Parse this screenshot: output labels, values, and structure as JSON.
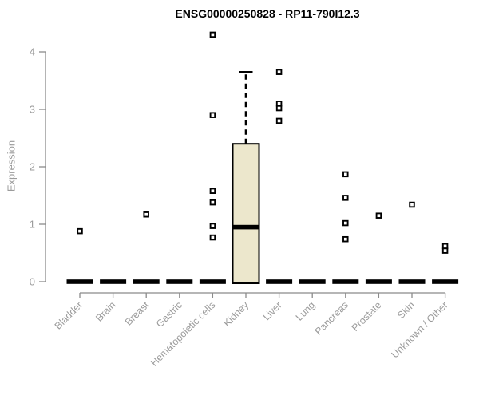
{
  "chart_data": {
    "type": "boxplot",
    "title": "ENSG00000250828 - RP11-790I12.3",
    "ylabel": "Expression",
    "xlabel": "",
    "ylim": [
      0,
      4.35
    ],
    "yticks": [
      0,
      1,
      2,
      3,
      4
    ],
    "grid": false,
    "legend": "none",
    "categories": [
      "Bladder",
      "Brain",
      "Breast",
      "Gastric",
      "Hematopoietic cells",
      "Kidney",
      "Liver",
      "Lung",
      "Pancreas",
      "Prostate",
      "Skin",
      "Unknown / Other"
    ],
    "series": [
      {
        "category": "Bladder",
        "q1": 0,
        "median": 0,
        "q3": 0,
        "whisker_low": 0,
        "whisker_high": 0,
        "outliers": [
          0.88
        ]
      },
      {
        "category": "Brain",
        "q1": 0,
        "median": 0,
        "q3": 0,
        "whisker_low": 0,
        "whisker_high": 0,
        "outliers": []
      },
      {
        "category": "Breast",
        "q1": 0,
        "median": 0,
        "q3": 0,
        "whisker_low": 0,
        "whisker_high": 0,
        "outliers": [
          1.17
        ]
      },
      {
        "category": "Gastric",
        "q1": 0,
        "median": 0,
        "q3": 0,
        "whisker_low": 0,
        "whisker_high": 0,
        "outliers": []
      },
      {
        "category": "Hematopoietic cells",
        "q1": 0,
        "median": 0,
        "q3": 0,
        "whisker_low": 0,
        "whisker_high": 0,
        "outliers": [
          4.3,
          2.9,
          1.58,
          1.38,
          0.97,
          0.77
        ]
      },
      {
        "category": "Kidney",
        "q1": 0,
        "median": 0.95,
        "q3": 2.4,
        "whisker_low": 0,
        "whisker_high": 3.65,
        "outliers": []
      },
      {
        "category": "Liver",
        "q1": 0,
        "median": 0,
        "q3": 0,
        "whisker_low": 0,
        "whisker_high": 0,
        "outliers": [
          3.65,
          3.1,
          3.02,
          2.8
        ]
      },
      {
        "category": "Lung",
        "q1": 0,
        "median": 0,
        "q3": 0,
        "whisker_low": 0,
        "whisker_high": 0,
        "outliers": []
      },
      {
        "category": "Pancreas",
        "q1": 0,
        "median": 0,
        "q3": 0,
        "whisker_low": 0,
        "whisker_high": 0,
        "outliers": [
          1.87,
          1.46,
          1.02,
          0.74
        ]
      },
      {
        "category": "Prostate",
        "q1": 0,
        "median": 0,
        "q3": 0,
        "whisker_low": 0,
        "whisker_high": 0,
        "outliers": [
          1.15
        ]
      },
      {
        "category": "Skin",
        "q1": 0,
        "median": 0,
        "q3": 0,
        "whisker_low": 0,
        "whisker_high": 0,
        "outliers": [
          1.34
        ]
      },
      {
        "category": "Unknown / Other",
        "q1": 0,
        "median": 0,
        "q3": 0,
        "whisker_low": 0,
        "whisker_high": 0,
        "outliers": [
          0.62,
          0.54
        ]
      }
    ],
    "colors": {
      "box_fill": "#ece7cc",
      "box_stroke": "#000000",
      "median": "#000000",
      "whisker": "#000000",
      "outlier_stroke": "#000000",
      "outlier_fill": "#ffffff",
      "axis": "#8b8b8b",
      "tick_text": "#9b9b9b",
      "title_text": "#000000"
    }
  }
}
